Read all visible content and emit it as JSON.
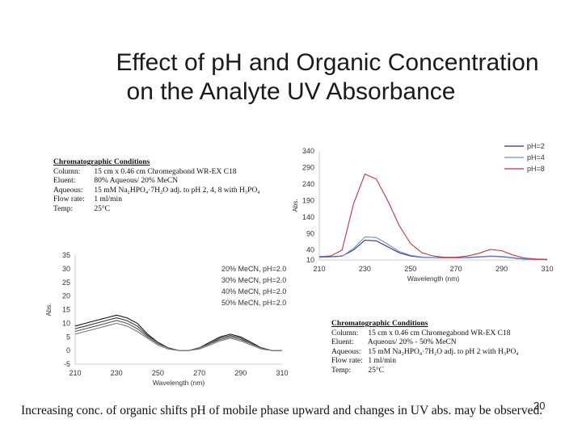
{
  "slide": {
    "title_line1": "Effect of pH and Organic Concentration",
    "title_line2": "on the Analyte UV Absorbance",
    "caption": "Increasing conc. of organic shifts pH of mobile phase upward and changes in UV abs. may be observed.",
    "page_number": "20"
  },
  "conditions_top": {
    "heading": "Chromatographic Conditions",
    "rows": [
      {
        "label": "Column:",
        "value": "15 cm x 0.46 cm Chromegabond WR-EX C18"
      },
      {
        "label": "Eluent:",
        "value": "80% Aqueous/ 20% MeCN"
      },
      {
        "label": "Aqueous:",
        "value": "15 mM Na₂HPO₄·7H₂O adj. to pH 2, 4, 8 with H₃PO₄"
      },
      {
        "label": "Flow rate:",
        "value": "1 ml/min"
      },
      {
        "label": "Temp:",
        "value": "25°C"
      }
    ]
  },
  "conditions_bottom": {
    "heading": "Chromatographic Conditions",
    "rows": [
      {
        "label": "Column:",
        "value": "15 cm x 0.46 cm Chromegabond WR-EX C18"
      },
      {
        "label": "Eluent:",
        "value": "Aqueous/ 20% - 50% MeCN"
      },
      {
        "label": "Aqueous:",
        "value": "15 mM Na₂HPO₄·7H₂O adj. to pH 2 with H₃PO₄"
      },
      {
        "label": "Flow rate:",
        "value": "1 ml/min"
      },
      {
        "label": "Temp:",
        "value": "25°C"
      }
    ]
  },
  "chart_data": [
    {
      "type": "line",
      "title": "",
      "xlabel": "Wavelength (nm)",
      "ylabel": "Abs.",
      "xlim": [
        210,
        310
      ],
      "ylim": [
        10,
        340
      ],
      "xticks": [
        "210",
        "230",
        "250",
        "270",
        "290",
        "310"
      ],
      "yticks": [
        "340",
        "290",
        "240",
        "190",
        "140",
        "90",
        "40",
        "10"
      ],
      "legend": "top-right",
      "x": [
        210,
        215,
        220,
        225,
        230,
        235,
        240,
        245,
        250,
        255,
        260,
        265,
        270,
        275,
        280,
        285,
        290,
        295,
        300,
        305,
        310
      ],
      "series": [
        {
          "name": "pH=2",
          "color": "#2a2a8a",
          "values": [
            20,
            20,
            22,
            40,
            70,
            68,
            50,
            32,
            22,
            18,
            17,
            16,
            16,
            17,
            19,
            21,
            20,
            16,
            13,
            12,
            11
          ]
        },
        {
          "name": "pH=4",
          "color": "#6a8fd8",
          "values": [
            18,
            19,
            21,
            45,
            80,
            78,
            58,
            36,
            24,
            19,
            17,
            16,
            16,
            18,
            20,
            22,
            21,
            17,
            14,
            12,
            11
          ]
        },
        {
          "name": "pH=8",
          "color": "#c0304a",
          "values": [
            20,
            22,
            40,
            180,
            270,
            255,
            190,
            115,
            60,
            32,
            22,
            18,
            18,
            22,
            30,
            42,
            38,
            25,
            16,
            13,
            12
          ]
        }
      ]
    },
    {
      "type": "line",
      "title": "",
      "xlabel": "Wavelength (nm)",
      "ylabel": "Abs.",
      "xlim": [
        210,
        310
      ],
      "ylim": [
        -5,
        35
      ],
      "xticks": [
        "210",
        "230",
        "250",
        "270",
        "290",
        "310"
      ],
      "yticks": [
        "35",
        "30",
        "25",
        "20",
        "15",
        "10",
        "5",
        "0",
        "-5"
      ],
      "legend": "top-right",
      "x": [
        210,
        215,
        220,
        225,
        230,
        235,
        240,
        245,
        250,
        255,
        260,
        265,
        270,
        275,
        280,
        285,
        290,
        295,
        300,
        305,
        310
      ],
      "series": [
        {
          "name": "20% MeCN, pH=2.0",
          "color": "#111111",
          "values": [
            9,
            10,
            11,
            12,
            13,
            12,
            10,
            6,
            3,
            1,
            0,
            0,
            1,
            3,
            5,
            6,
            5,
            3,
            1,
            0,
            0
          ]
        },
        {
          "name": "30% MeCN, pH=2.0",
          "color": "#333333",
          "values": [
            8,
            9,
            10,
            11,
            12,
            11,
            9,
            5.5,
            3,
            1,
            0,
            0,
            1,
            2.5,
            4.5,
            5.5,
            4.5,
            2.5,
            1,
            0,
            0
          ]
        },
        {
          "name": "40% MeCN, pH=2.0",
          "color": "#555555",
          "values": [
            7,
            8,
            9,
            10,
            11,
            10,
            8,
            5,
            2.5,
            1,
            0,
            0,
            1,
            2.5,
            4,
            5,
            4,
            2.5,
            1,
            0,
            0
          ]
        },
        {
          "name": "50% MeCN, pH=2.0",
          "color": "#777777",
          "values": [
            6,
            7,
            8,
            9,
            10,
            9,
            7,
            4.5,
            2,
            0.5,
            0,
            0,
            0.5,
            2,
            3.5,
            4.5,
            3.5,
            2,
            0.5,
            0,
            0
          ]
        }
      ]
    }
  ]
}
